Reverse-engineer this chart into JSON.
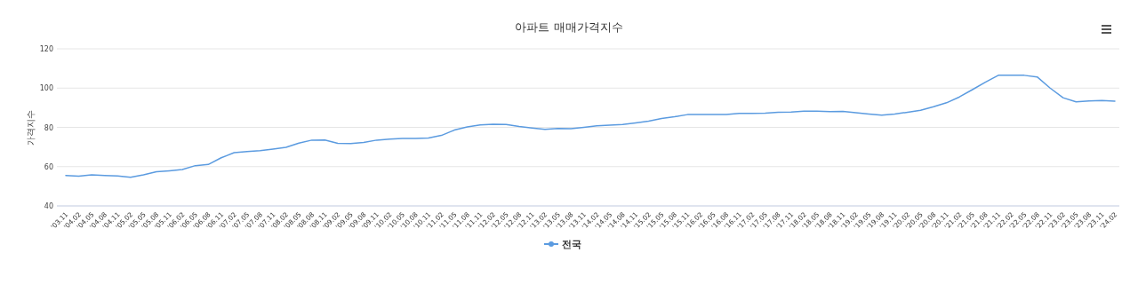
{
  "chart_data": {
    "type": "line",
    "title": "아파트 매매가격지수",
    "ylabel": "가격지수",
    "categories": [
      "'03.11",
      "'04.02",
      "'04.05",
      "'04.08",
      "'04.11",
      "'05.02",
      "'05.05",
      "'05.08",
      "'05.11",
      "'06.02",
      "'06.05",
      "'06.08",
      "'06.11",
      "'07.02",
      "'07.05",
      "'07.08",
      "'07.11",
      "'08.02",
      "'08.05",
      "'08.08",
      "'08.11",
      "'09.02",
      "'09.05",
      "'09.08",
      "'09.11",
      "'10.02",
      "'10.05",
      "'10.08",
      "'10.11",
      "'11.02",
      "'11.05",
      "'11.08",
      "'11.11",
      "'12.02",
      "'12.05",
      "'12.08",
      "'12.11",
      "'13.02",
      "'13.05",
      "'13.08",
      "'13.11",
      "'14.02",
      "'14.05",
      "'14.08",
      "'14.11",
      "'15.02",
      "'15.05",
      "'15.08",
      "'15.11",
      "'16.02",
      "'16.05",
      "'16.08",
      "'16.11",
      "'17.02",
      "'17.05",
      "'17.08",
      "'17.11",
      "'18.02",
      "'18.05",
      "'18.08",
      "'18.11",
      "'19.02",
      "'19.05",
      "'19.08",
      "'19.11",
      "'20.02",
      "'20.05",
      "'20.08",
      "'20.11",
      "'21.02",
      "'21.05",
      "'21.08",
      "'21.11",
      "'22.02",
      "'22.05",
      "'22.08",
      "'22.11",
      "'23.02",
      "'23.05",
      "'23.08",
      "'23.11",
      "'24.02"
    ],
    "series": [
      {
        "name": "전국",
        "color": "#5b9be0",
        "values": [
          55.5,
          55.1,
          55.8,
          55.5,
          55.3,
          54.6,
          55.8,
          57.4,
          57.9,
          58.5,
          60.5,
          61.1,
          64.5,
          67.1,
          67.7,
          68.1,
          68.9,
          69.8,
          72.0,
          73.5,
          73.6,
          71.9,
          71.7,
          72.3,
          73.5,
          74.0,
          74.4,
          74.3,
          74.6,
          75.9,
          78.6,
          80.2,
          81.2,
          81.6,
          81.5,
          80.5,
          79.7,
          79.0,
          79.4,
          79.3,
          80.0,
          80.8,
          81.1,
          81.5,
          82.3,
          83.2,
          84.5,
          85.4,
          86.5,
          86.5,
          86.5,
          86.6,
          87.1,
          87.1,
          87.2,
          87.7,
          87.8,
          88.3,
          88.3,
          88.0,
          88.1,
          87.5,
          86.8,
          86.2,
          86.8,
          87.7,
          88.7,
          90.5,
          92.5,
          95.5,
          99.2,
          103.0,
          106.5,
          106.6,
          106.5,
          105.7,
          100.0,
          95.1,
          93.0,
          93.4,
          93.7,
          93.3
        ]
      }
    ],
    "ylim": [
      40,
      120
    ],
    "yticks": [
      40,
      60,
      80,
      100,
      120
    ],
    "grid": "y",
    "legend": "bottom"
  }
}
